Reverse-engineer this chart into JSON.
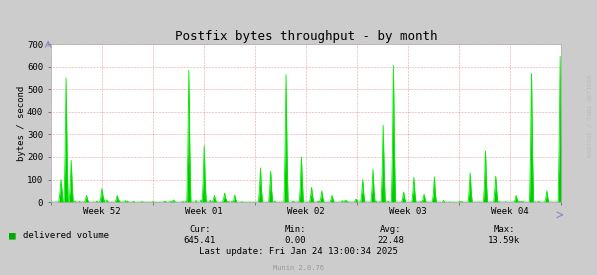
{
  "title": "Postfix bytes throughput - by month",
  "ylabel": "bytes / second",
  "bg_color": "#CCCCCC",
  "plot_bg_color": "#FFFFFF",
  "line_color": "#00EE00",
  "fill_color": "#00CC00",
  "ylim": [
    0,
    700
  ],
  "yticks": [
    0,
    100,
    200,
    300,
    400,
    500,
    600,
    700
  ],
  "xtick_labels": [
    "Week 52",
    "Week 01",
    "Week 02",
    "Week 03",
    "Week 04"
  ],
  "legend_label": "delivered volume",
  "legend_color": "#00AA00",
  "cur": "645.41",
  "min": "0.00",
  "avg": "22.48",
  "max": "13.59k",
  "last_update": "Last update: Fri Jan 24 13:00:34 2025",
  "munin_version": "Munin 2.0.76",
  "rrdtool_label": "RRDTOOL / TOBI OETIKER",
  "title_fontsize": 9,
  "axis_fontsize": 6.5,
  "tick_fontsize": 6.5,
  "stats_fontsize": 6.5,
  "num_points": 500
}
